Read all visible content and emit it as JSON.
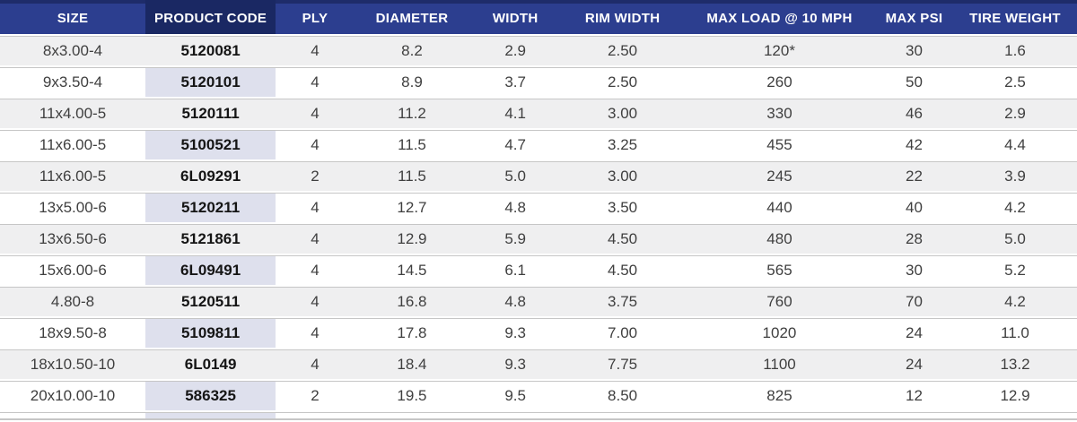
{
  "chart_data": {
    "type": "table",
    "title": "",
    "columns": [
      "SIZE",
      "PRODUCT CODE",
      "PLY",
      "DIAMETER",
      "WIDTH",
      "RIM WIDTH",
      "MAX LOAD @ 10 MPH",
      "MAX PSI",
      "TIRE WEIGHT"
    ],
    "highlighted_column": "PRODUCT CODE",
    "rows": [
      [
        "8x3.00-4",
        "5120081",
        "4",
        "8.2",
        "2.9",
        "2.50",
        "120*",
        "30",
        "1.6"
      ],
      [
        "9x3.50-4",
        "5120101",
        "4",
        "8.9",
        "3.7",
        "2.50",
        "260",
        "50",
        "2.5"
      ],
      [
        "11x4.00-5",
        "5120111",
        "4",
        "11.2",
        "4.1",
        "3.00",
        "330",
        "46",
        "2.9"
      ],
      [
        "11x6.00-5",
        "5100521",
        "4",
        "11.5",
        "4.7",
        "3.25",
        "455",
        "42",
        "4.4"
      ],
      [
        "11x6.00-5",
        "6L09291",
        "2",
        "11.5",
        "5.0",
        "3.00",
        "245",
        "22",
        "3.9"
      ],
      [
        "13x5.00-6",
        "5120211",
        "4",
        "12.7",
        "4.8",
        "3.50",
        "440",
        "40",
        "4.2"
      ],
      [
        "13x6.50-6",
        "5121861",
        "4",
        "12.9",
        "5.9",
        "4.50",
        "480",
        "28",
        "5.0"
      ],
      [
        "15x6.00-6",
        "6L09491",
        "4",
        "14.5",
        "6.1",
        "4.50",
        "565",
        "30",
        "5.2"
      ],
      [
        "4.80-8",
        "5120511",
        "4",
        "16.8",
        "4.8",
        "3.75",
        "760",
        "70",
        "4.2"
      ],
      [
        "18x9.50-8",
        "5109811",
        "4",
        "17.8",
        "9.3",
        "7.00",
        "1020",
        "24",
        "11.0"
      ],
      [
        "18x10.50-10",
        "6L0149",
        "4",
        "18.4",
        "9.3",
        "7.75",
        "1100",
        "24",
        "13.2"
      ],
      [
        "20x10.00-10",
        "586325",
        "2",
        "19.5",
        "9.5",
        "8.50",
        "825",
        "12",
        "12.9"
      ]
    ],
    "layout": {
      "grid": "horizontal row separators only",
      "row_striping": "odd rows gray, even rows white"
    }
  },
  "colors": {
    "header_bg": "#2c3e8f",
    "header_top_border": "#1e2c6a",
    "header_highlight_bg": "#1a2863",
    "header_text": "#ffffff",
    "highlight_column_bg": "#dee0ed",
    "row_alt_bg": "#efeff0",
    "row_bg": "#ffffff",
    "separator_line": "#c6c6c6",
    "body_text": "#3f3f3f",
    "product_code_text": "#151515"
  }
}
